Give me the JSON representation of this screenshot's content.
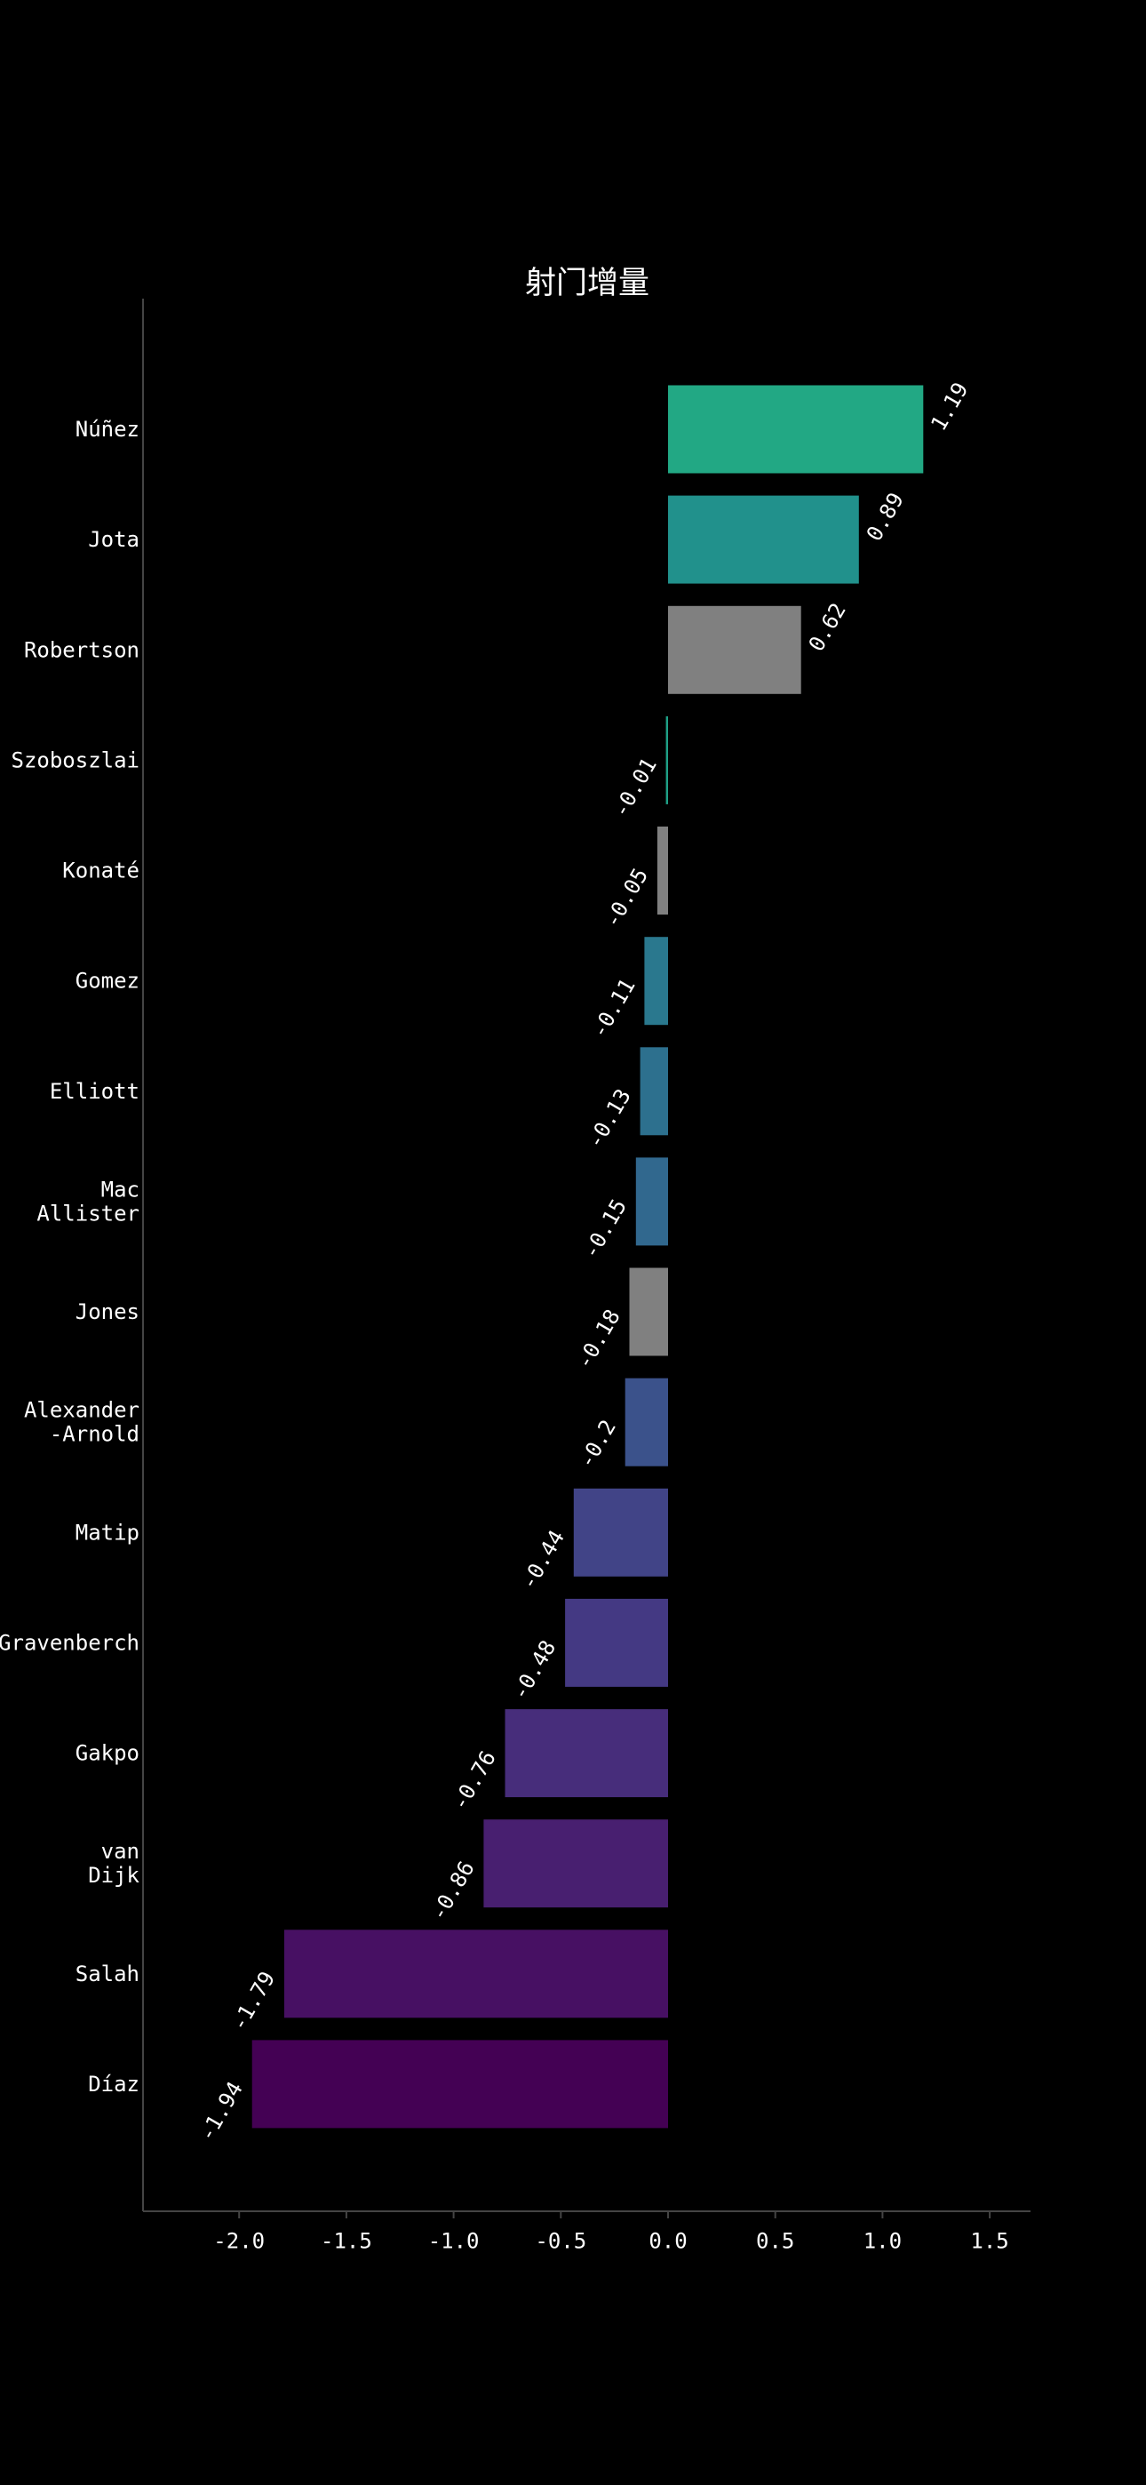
{
  "chart_data": {
    "type": "bar",
    "orientation": "horizontal",
    "title": "射门增量",
    "xlabel": "",
    "ylabel": "",
    "xlim": [
      -2.45,
      1.7
    ],
    "xticks": [
      -2.0,
      -1.5,
      -1.0,
      -0.5,
      0.0,
      0.5,
      1.0,
      1.5
    ],
    "xtick_labels": [
      "-2.0",
      "-1.5",
      "-1.0",
      "-0.5",
      "0.0",
      "0.5",
      "1.0",
      "1.5"
    ],
    "grid": false,
    "legend": "none",
    "background": "#000000",
    "axis_color": "#444444",
    "bars": [
      {
        "label": [
          "Núñez"
        ],
        "value": 1.19,
        "value_label": "1.19",
        "color": "#22a884"
      },
      {
        "label": [
          "Jota"
        ],
        "value": 0.89,
        "value_label": "0.89",
        "color": "#21918c"
      },
      {
        "label": [
          "Robertson"
        ],
        "value": 0.62,
        "value_label": "0.62",
        "color": "#808080"
      },
      {
        "label": [
          "Szoboszlai"
        ],
        "value": -0.01,
        "value_label": "-0.01",
        "color": "#1fa187"
      },
      {
        "label": [
          "Konaté"
        ],
        "value": -0.05,
        "value_label": "-0.05",
        "color": "#808080"
      },
      {
        "label": [
          "Gomez"
        ],
        "value": -0.11,
        "value_label": "-0.11",
        "color": "#2a788e"
      },
      {
        "label": [
          "Elliott"
        ],
        "value": -0.13,
        "value_label": "-0.13",
        "color": "#2d708e"
      },
      {
        "label": [
          "Mac",
          "Allister"
        ],
        "value": -0.15,
        "value_label": "-0.15",
        "color": "#31688e"
      },
      {
        "label": [
          "Jones"
        ],
        "value": -0.18,
        "value_label": "-0.18",
        "color": "#808080"
      },
      {
        "label": [
          "Alexander",
          "-Arnold"
        ],
        "value": -0.2,
        "value_label": "-0.2",
        "color": "#3b528b"
      },
      {
        "label": [
          "Matip"
        ],
        "value": -0.44,
        "value_label": "-0.44",
        "color": "#414487"
      },
      {
        "label": [
          "Gravenberch"
        ],
        "value": -0.48,
        "value_label": "-0.48",
        "color": "#443983"
      },
      {
        "label": [
          "Gakpo"
        ],
        "value": -0.76,
        "value_label": "-0.76",
        "color": "#472d7b"
      },
      {
        "label": [
          "van",
          "Dijk"
        ],
        "value": -0.86,
        "value_label": "-0.86",
        "color": "#481f70"
      },
      {
        "label": [
          "Salah"
        ],
        "value": -1.79,
        "value_label": "-1.79",
        "color": "#471063"
      },
      {
        "label": [
          "Díaz"
        ],
        "value": -1.94,
        "value_label": "-1.94",
        "color": "#440154"
      }
    ]
  }
}
